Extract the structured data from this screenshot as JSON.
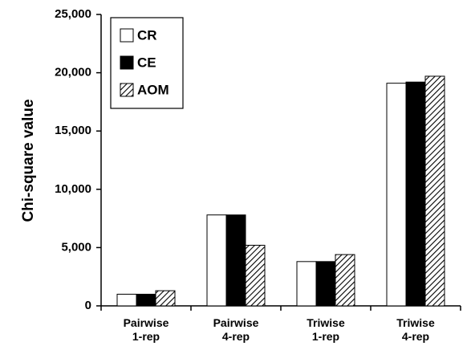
{
  "chart_data": {
    "type": "bar",
    "y_label": "Chi-square value",
    "categories": [
      "Pairwise 1-rep",
      "Pairwise 4-rep",
      "Triwise 1-rep",
      "Triwise 4-rep"
    ],
    "series": [
      {
        "name": "CR",
        "color": "#ffffff",
        "values": [
          1000,
          7800,
          3800,
          19100
        ]
      },
      {
        "name": "CE",
        "color": "#000000",
        "values": [
          1000,
          7800,
          3800,
          19200
        ]
      },
      {
        "name": "AOM",
        "color": "#000000",
        "pattern": "hatch",
        "values": [
          1300,
          5200,
          4400,
          19700
        ]
      }
    ],
    "ylim": [
      0,
      25000
    ],
    "yticks": [
      0,
      {
        "value": 5000,
        "label": "5,000"
      },
      {
        "value": 10000,
        "label": "10,000"
      },
      {
        "value": 15000,
        "label": "15,000"
      },
      {
        "value": 20000,
        "label": "20,000"
      },
      {
        "value": 25000,
        "label": "25,000"
      }
    ],
    "grid": false,
    "legend": "upper left"
  }
}
